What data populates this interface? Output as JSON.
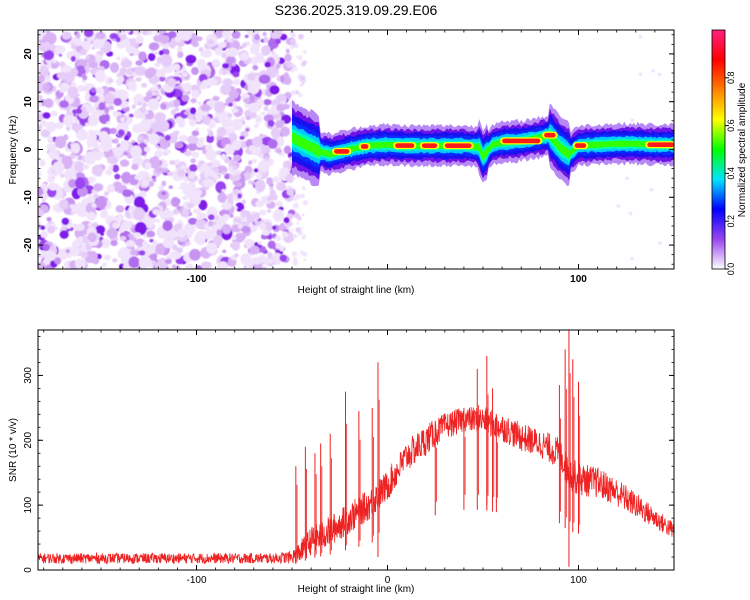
{
  "title": "S236.2025.319.09.29.E06",
  "chart_data": [
    {
      "type": "heatmap",
      "xlabel": "Height of straight line (km)",
      "ylabel": "Frequency (Hz)",
      "xlim": [
        -183,
        150
      ],
      "ylim": [
        -25,
        25
      ],
      "xticks": [
        -100,
        0,
        100
      ],
      "xtick_labels": [
        "-100",
        "",
        "100"
      ],
      "yticks": [
        -20,
        -10,
        0,
        10,
        20
      ],
      "ytick_labels": [
        "-20",
        "-10",
        "0",
        "10",
        "20"
      ],
      "noise_region_km": [
        -183,
        -50
      ],
      "signal_start_km": -50,
      "carrier_frequency_track": {
        "x": [
          -50,
          -45,
          -40,
          -35,
          -30,
          -20,
          -10,
          0,
          10,
          20,
          30,
          40,
          48,
          50,
          55,
          60,
          70,
          80,
          85,
          90,
          95,
          100,
          110,
          120,
          130,
          140,
          150
        ],
        "y": [
          2.5,
          1.5,
          0.5,
          -0.5,
          -1.0,
          0.0,
          0.8,
          1.0,
          0.8,
          0.8,
          0.8,
          0.8,
          0.5,
          -1.5,
          1.0,
          1.5,
          1.8,
          2.5,
          3.0,
          0.5,
          -1.0,
          0.8,
          1.0,
          1.2,
          1.2,
          1.0,
          1.0
        ]
      },
      "colorbar": {
        "label": "Normalized spectral amplitude",
        "range": [
          0.0,
          1.0
        ],
        "ticks": [
          0.0,
          0.2,
          0.4,
          0.6,
          0.8
        ],
        "tick_labels": [
          "0.0",
          "0.2",
          "0.4",
          "0.6",
          "0.8"
        ],
        "colors": [
          "#ffffff",
          "#9a45f0",
          "#0000ff",
          "#00e5ff",
          "#00ff00",
          "#ffff00",
          "#ff8000",
          "#ff0000",
          "#ff1f7f"
        ]
      }
    },
    {
      "type": "line",
      "xlabel": "Height of straight line (km)",
      "ylabel": "SNR (10 * v/v)",
      "xlim": [
        -183,
        150
      ],
      "ylim": [
        0,
        370
      ],
      "xticks": [
        -100,
        0,
        100
      ],
      "xtick_labels": [
        "-100",
        "0",
        "100"
      ],
      "yticks": [
        0,
        100,
        200,
        300
      ],
      "ytick_labels": [
        "0",
        "100",
        "200",
        "300"
      ],
      "color": "#ee2222",
      "envelope": {
        "x": [
          -183,
          -150,
          -100,
          -60,
          -50,
          -45,
          -40,
          -30,
          -20,
          -10,
          0,
          10,
          20,
          30,
          40,
          50,
          55,
          60,
          70,
          80,
          90,
          95,
          100,
          110,
          120,
          130,
          140,
          150
        ],
        "mean": [
          18,
          18,
          18,
          18,
          20,
          30,
          45,
          60,
          80,
          100,
          130,
          175,
          200,
          222,
          232,
          232,
          225,
          220,
          205,
          195,
          180,
          150,
          140,
          135,
          120,
          100,
          80,
          60
        ],
        "noise": [
          8,
          8,
          8,
          8,
          10,
          18,
          22,
          24,
          24,
          24,
          24,
          24,
          24,
          20,
          20,
          20,
          22,
          22,
          22,
          22,
          24,
          26,
          26,
          24,
          22,
          20,
          16,
          14
        ]
      },
      "spikes": {
        "x": [
          -48,
          -43,
          -38,
          -35,
          -30,
          -22,
          -15,
          -8,
          -5,
          25,
          40,
          47,
          52,
          55,
          57,
          90,
          93,
          95,
          97,
          100
        ],
        "y": [
          160,
          190,
          180,
          195,
          210,
          275,
          245,
          250,
          320,
          230,
          250,
          310,
          330,
          280,
          240,
          285,
          340,
          370,
          325,
          290
        ]
      },
      "dips": {
        "x": [
          -5,
          52,
          95
        ],
        "y": [
          20,
          100,
          5
        ]
      }
    }
  ]
}
